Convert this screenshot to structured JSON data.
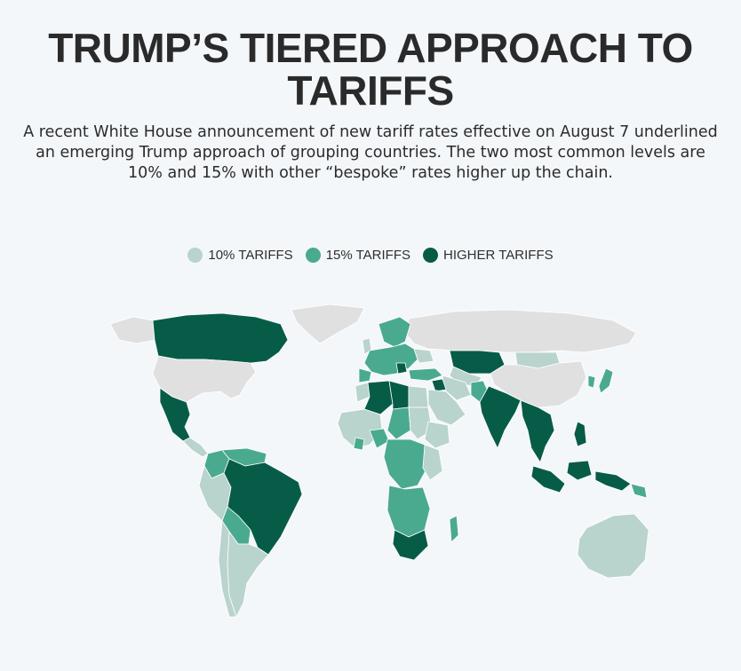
{
  "title": "TRUMP’S TIERED APPROACH TO TARIFFS",
  "subtitle": "A recent White House announcement of new tariff rates effective on August 7 underlined an emerging Trump approach of grouping countries. The two most common levels are 10% and 15% with other “bespoke” rates higher up the chain.",
  "legend": [
    {
      "label": "10% TARIFFS",
      "color": "#b9d3cd"
    },
    {
      "label": "15% TARIFFS",
      "color": "#4aaa8f"
    },
    {
      "label": "HIGHER TARIFFS",
      "color": "#075c48"
    }
  ],
  "colors": {
    "no_data": "#e0e0e0",
    "tier_10": "#b9d3cd",
    "tier_15": "#4aaa8f",
    "tier_higher": "#075c48",
    "background": "#f4f7fa"
  },
  "map": {
    "regions": [
      {
        "name": "Canada",
        "tier": "higher"
      },
      {
        "name": "United States",
        "tier": "none"
      },
      {
        "name": "Mexico",
        "tier": "higher"
      },
      {
        "name": "Greenland",
        "tier": "none"
      },
      {
        "name": "Brazil",
        "tier": "higher"
      },
      {
        "name": "Venezuela",
        "tier": "15"
      },
      {
        "name": "Colombia",
        "tier": "15"
      },
      {
        "name": "Peru",
        "tier": "10"
      },
      {
        "name": "Bolivia",
        "tier": "15"
      },
      {
        "name": "Chile",
        "tier": "10"
      },
      {
        "name": "Argentina",
        "tier": "10"
      },
      {
        "name": "Paraguay",
        "tier": "15"
      },
      {
        "name": "Russia",
        "tier": "none"
      },
      {
        "name": "Kazakhstan",
        "tier": "higher"
      },
      {
        "name": "China",
        "tier": "none"
      },
      {
        "name": "Mongolia",
        "tier": "10"
      },
      {
        "name": "Japan",
        "tier": "15"
      },
      {
        "name": "South Korea",
        "tier": "15"
      },
      {
        "name": "India",
        "tier": "higher"
      },
      {
        "name": "Pakistan",
        "tier": "15"
      },
      {
        "name": "Afghanistan",
        "tier": "10"
      },
      {
        "name": "Iran",
        "tier": "10"
      },
      {
        "name": "Iraq",
        "tier": "higher"
      },
      {
        "name": "Turkey",
        "tier": "15"
      },
      {
        "name": "Saudi Arabia",
        "tier": "10"
      },
      {
        "name": "Myanmar",
        "tier": "higher"
      },
      {
        "name": "Thailand",
        "tier": "higher"
      },
      {
        "name": "Vietnam",
        "tier": "higher"
      },
      {
        "name": "Malaysia",
        "tier": "higher"
      },
      {
        "name": "Indonesia",
        "tier": "higher"
      },
      {
        "name": "Philippines",
        "tier": "higher"
      },
      {
        "name": "Papua New Guinea",
        "tier": "15"
      },
      {
        "name": "Australia",
        "tier": "10"
      },
      {
        "name": "New Zealand",
        "tier": "15"
      },
      {
        "name": "Algeria",
        "tier": "higher"
      },
      {
        "name": "Libya",
        "tier": "higher"
      },
      {
        "name": "Egypt",
        "tier": "10"
      },
      {
        "name": "Sudan",
        "tier": "10"
      },
      {
        "name": "South Africa",
        "tier": "higher"
      },
      {
        "name": "Madagascar",
        "tier": "15"
      },
      {
        "name": "Europe",
        "tier": "15"
      }
    ]
  }
}
